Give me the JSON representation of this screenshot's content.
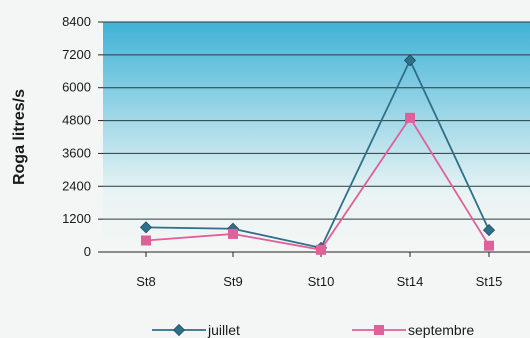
{
  "chart_data": {
    "type": "line",
    "title": "",
    "xlabel": "",
    "ylabel": "Roga litres/s",
    "categories": [
      "St8",
      "St9",
      "St10",
      "St14",
      "St15"
    ],
    "ylim": [
      0,
      8400
    ],
    "yticks": [
      "0",
      "1200",
      "2400",
      "3600",
      "4800",
      "6000",
      "7200",
      "8400"
    ],
    "grid": true,
    "legend_position": "bottom",
    "series": [
      {
        "name": "juillet",
        "values": [
          900,
          850,
          150,
          7000,
          800
        ],
        "color": "#2f6f8a",
        "marker": "diamond"
      },
      {
        "name": "septembre",
        "values": [
          420,
          660,
          80,
          4900,
          230
        ],
        "color": "#e0609a",
        "marker": "square"
      }
    ]
  }
}
